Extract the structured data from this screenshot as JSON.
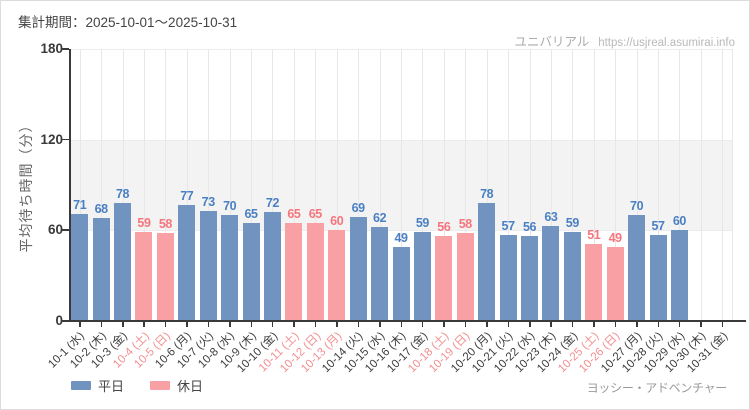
{
  "header": {
    "title": "集計期間：2025-10-01～2025-10-31",
    "brand": "ユニバリアル",
    "url": "https://usjreal.asumirai.info"
  },
  "footer": {
    "attraction": "ヨッシー・アドベンチャー"
  },
  "legend": [
    {
      "label": "平日",
      "series": "weekday",
      "color": "#7093c0"
    },
    {
      "label": "休日",
      "series": "holiday",
      "color": "#f9a0a5"
    }
  ],
  "chart_data": {
    "type": "bar",
    "title": "集計期間：2025-10-01～2025-10-31",
    "ylabel": "平均待ち時間（分）",
    "xlabel": "",
    "ylim": [
      0,
      180
    ],
    "yticks": [
      0,
      60,
      120,
      180
    ],
    "band": {
      "from": 60,
      "to": 120
    },
    "grid": "vertical-per-category",
    "legend_position": "bottom-left",
    "colors": {
      "weekday_bar": "#7093c0",
      "holiday_bar": "#f9a0a5",
      "weekday_value_label": "#4a80c2",
      "holiday_value_label": "#f6757d",
      "weekday_tick_label": "#3d3d3d",
      "holiday_tick_label": "#f28e90",
      "band": "#f3f3f3",
      "axis": "#3a3a3a"
    },
    "points": [
      {
        "date": "10-1 (水)",
        "value": 71,
        "series": "weekday",
        "holiday": false
      },
      {
        "date": "10-2 (木)",
        "value": 68,
        "series": "weekday",
        "holiday": false
      },
      {
        "date": "10-3 (金)",
        "value": 78,
        "series": "weekday",
        "holiday": false
      },
      {
        "date": "10-4 (土)",
        "value": 59,
        "series": "holiday",
        "holiday": true
      },
      {
        "date": "10-5 (日)",
        "value": 58,
        "series": "holiday",
        "holiday": true
      },
      {
        "date": "10-6 (月)",
        "value": 77,
        "series": "weekday",
        "holiday": false
      },
      {
        "date": "10-7 (火)",
        "value": 73,
        "series": "weekday",
        "holiday": false
      },
      {
        "date": "10-8 (水)",
        "value": 70,
        "series": "weekday",
        "holiday": false
      },
      {
        "date": "10-9 (木)",
        "value": 65,
        "series": "weekday",
        "holiday": false
      },
      {
        "date": "10-10 (金)",
        "value": 72,
        "series": "weekday",
        "holiday": false
      },
      {
        "date": "10-11 (土)",
        "value": 65,
        "series": "holiday",
        "holiday": true
      },
      {
        "date": "10-12 (日)",
        "value": 65,
        "series": "holiday",
        "holiday": true
      },
      {
        "date": "10-13 (月)",
        "value": 60,
        "series": "holiday",
        "holiday": true
      },
      {
        "date": "10-14 (火)",
        "value": 69,
        "series": "weekday",
        "holiday": false
      },
      {
        "date": "10-15 (水)",
        "value": 62,
        "series": "weekday",
        "holiday": false
      },
      {
        "date": "10-16 (木)",
        "value": 49,
        "series": "weekday",
        "holiday": false
      },
      {
        "date": "10-17 (金)",
        "value": 59,
        "series": "weekday",
        "holiday": false
      },
      {
        "date": "10-18 (土)",
        "value": 56,
        "series": "holiday",
        "holiday": true
      },
      {
        "date": "10-19 (日)",
        "value": 58,
        "series": "holiday",
        "holiday": true
      },
      {
        "date": "10-20 (月)",
        "value": 78,
        "series": "weekday",
        "holiday": false
      },
      {
        "date": "10-21 (火)",
        "value": 57,
        "series": "weekday",
        "holiday": false
      },
      {
        "date": "10-22 (水)",
        "value": 56,
        "series": "weekday",
        "holiday": false
      },
      {
        "date": "10-23 (木)",
        "value": 63,
        "series": "weekday",
        "holiday": false
      },
      {
        "date": "10-24 (金)",
        "value": 59,
        "series": "weekday",
        "holiday": false
      },
      {
        "date": "10-25 (土)",
        "value": 51,
        "series": "holiday",
        "holiday": true
      },
      {
        "date": "10-26 (日)",
        "value": 49,
        "series": "holiday",
        "holiday": true
      },
      {
        "date": "10-27 (月)",
        "value": 70,
        "series": "weekday",
        "holiday": false
      },
      {
        "date": "10-28 (火)",
        "value": 57,
        "series": "weekday",
        "holiday": false
      },
      {
        "date": "10-29 (水)",
        "value": 60,
        "series": "weekday",
        "holiday": false
      },
      {
        "date": "10-30 (木)",
        "value": null,
        "series": null,
        "holiday": false
      },
      {
        "date": "10-31 (金)",
        "value": null,
        "series": null,
        "holiday": false
      }
    ]
  }
}
